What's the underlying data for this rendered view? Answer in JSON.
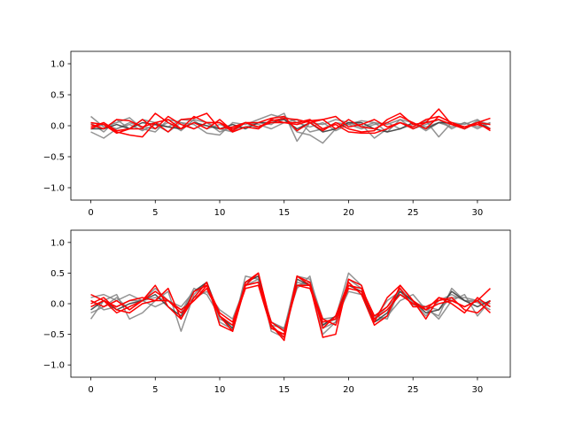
{
  "colors": {
    "gray": "#808080",
    "dark": "#3d3d3d",
    "red": "#ff0000"
  },
  "chart_data": [
    {
      "type": "line",
      "xlim": [
        -1.55,
        32.55
      ],
      "ylim": [
        -1.2,
        1.2
      ],
      "xticks": [
        0,
        5,
        10,
        15,
        20,
        25,
        30
      ],
      "yticks": [
        -1.0,
        -0.5,
        0.0,
        0.5,
        1.0
      ],
      "xtick_labels": [
        "0",
        "5",
        "10",
        "15",
        "20",
        "25",
        "30"
      ],
      "ytick_labels": [
        "−1.0",
        "−0.5",
        "0.0",
        "0.5",
        "1.0"
      ],
      "grid": false,
      "x": [
        0,
        1,
        2,
        3,
        4,
        5,
        6,
        7,
        8,
        9,
        10,
        11,
        12,
        13,
        14,
        15,
        16,
        17,
        18,
        19,
        20,
        21,
        22,
        23,
        24,
        25,
        26,
        27,
        28,
        29,
        30,
        31
      ],
      "series": [
        {
          "color": "gray",
          "values": [
            0.15,
            -0.02,
            0.05,
            0.13,
            -0.05,
            -0.1,
            0.1,
            0.05,
            0.02,
            -0.12,
            -0.15,
            0.05,
            0.02,
            0.1,
            0.18,
            0.12,
            -0.1,
            -0.15,
            -0.28,
            -0.05,
            0.05,
            0.02,
            -0.2,
            -0.05,
            0.05,
            -0.02,
            0.08,
            -0.18,
            0.05,
            0.02,
            0.1,
            -0.05
          ]
        },
        {
          "color": "gray",
          "values": [
            -0.1,
            -0.2,
            -0.05,
            0.05,
            -0.02,
            -0.05,
            0.05,
            -0.08,
            0.1,
            0.05,
            -0.05,
            -0.1,
            0.05,
            -0.05,
            0.1,
            0.2,
            -0.25,
            0.05,
            0.02,
            0.1,
            0.05,
            -0.02,
            0.05,
            -0.1,
            0.1,
            0.05,
            -0.08,
            0.05,
            -0.02,
            0.05,
            -0.02,
            0.05
          ]
        },
        {
          "color": "gray",
          "values": [
            0.05,
            -0.1,
            0.1,
            -0.05,
            0.1,
            0.05,
            -0.02,
            0.1,
            0.08,
            -0.05,
            0.02,
            -0.05,
            -0.02,
            0.05,
            0.02,
            0.15,
            0.05,
            -0.02,
            0.05,
            -0.08,
            0.02,
            0.08,
            0.05,
            0.02,
            0.1,
            -0.05,
            0.02,
            0.1,
            -0.05,
            0.05,
            -0.05,
            0.05
          ]
        },
        {
          "color": "gray",
          "values": [
            -0.05,
            0.02,
            -0.05,
            0.02,
            -0.08,
            0.02,
            -0.1,
            0.05,
            -0.05,
            0.05,
            -0.1,
            -0.02,
            0.05,
            0.02,
            -0.05,
            0.05,
            0.1,
            -0.1,
            -0.05,
            0.05,
            0.02,
            -0.05,
            0.02,
            0.05,
            -0.05,
            0.02,
            -0.02,
            0.05,
            0.02,
            -0.05,
            0.08,
            0.02
          ]
        },
        {
          "color": "dark",
          "values": [
            -0.05,
            -0.05,
            0.02,
            -0.05,
            0.05,
            0.02,
            -0.02,
            -0.05,
            0.05,
            0.0,
            -0.05,
            0.02,
            -0.05,
            0.05,
            0.05,
            0.1,
            -0.05,
            0.05,
            -0.1,
            -0.05,
            0.05,
            0.05,
            -0.05,
            -0.1,
            -0.05,
            0.05,
            -0.05,
            0.05,
            0.05,
            -0.05,
            0.05,
            -0.05
          ]
        },
        {
          "color": "red",
          "values": [
            -0.02,
            0.05,
            -0.08,
            -0.05,
            0.1,
            -0.05,
            0.15,
            0.02,
            -0.05,
            0.05,
            0.05,
            -0.1,
            -0.02,
            -0.05,
            0.1,
            0.05,
            0.02,
            0.08,
            0.1,
            -0.05,
            0.1,
            -0.02,
            -0.05,
            0.05,
            0.15,
            0.05,
            -0.05,
            0.15,
            0.05,
            -0.02,
            0.05,
            0.12
          ]
        },
        {
          "color": "red",
          "values": [
            0.02,
            -0.05,
            0.1,
            0.08,
            -0.02,
            0.05,
            -0.1,
            0.1,
            0.12,
            0.2,
            -0.05,
            -0.02,
            0.05,
            -0.02,
            0.08,
            0.12,
            0.1,
            0.05,
            -0.08,
            0.05,
            -0.05,
            -0.1,
            -0.08,
            0.1,
            0.2,
            0.02,
            0.05,
            0.27,
            0.02,
            -0.05,
            0.05,
            -0.08
          ]
        },
        {
          "color": "red",
          "values": [
            0.05,
            0.02,
            -0.12,
            -0.05,
            -0.05,
            0.2,
            0.05,
            -0.05,
            0.15,
            0.05,
            0.05,
            -0.05,
            0.05,
            -0.02,
            0.05,
            0.05,
            0.05,
            0.1,
            -0.05,
            0.02,
            -0.1,
            -0.12,
            -0.12,
            -0.05,
            0.05,
            -0.02,
            0.1,
            0.15,
            0.05,
            -0.02,
            0.05,
            0.02
          ]
        },
        {
          "color": "red",
          "values": [
            -0.05,
            0.05,
            -0.1,
            -0.15,
            -0.18,
            0.05,
            0.1,
            -0.05,
            0.05,
            -0.05,
            0.1,
            -0.08,
            0.05,
            0.05,
            0.12,
            0.15,
            -0.08,
            0.05,
            0.1,
            0.15,
            -0.02,
            0.02,
            0.1,
            -0.02,
            0.05,
            -0.05,
            0.05,
            0.1,
            0.02,
            -0.02,
            0.02,
            -0.05
          ]
        }
      ]
    },
    {
      "type": "line",
      "xlim": [
        -1.55,
        32.55
      ],
      "ylim": [
        -1.2,
        1.2
      ],
      "xticks": [
        0,
        5,
        10,
        15,
        20,
        25,
        30
      ],
      "yticks": [
        -1.0,
        -0.5,
        0.0,
        0.5,
        1.0
      ],
      "xtick_labels": [
        "0",
        "5",
        "10",
        "15",
        "20",
        "25",
        "30"
      ],
      "ytick_labels": [
        "−1.0",
        "−0.5",
        "0.0",
        "0.5",
        "1.0"
      ],
      "grid": false,
      "x": [
        0,
        1,
        2,
        3,
        4,
        5,
        6,
        7,
        8,
        9,
        10,
        11,
        12,
        13,
        14,
        15,
        16,
        17,
        18,
        19,
        20,
        21,
        22,
        23,
        24,
        25,
        26,
        27,
        28,
        29,
        30,
        31
      ],
      "series": [
        {
          "color": "gray",
          "values": [
            -0.25,
            0.05,
            0.15,
            -0.25,
            -0.15,
            0.05,
            0.2,
            -0.45,
            0.15,
            0.35,
            -0.3,
            -0.42,
            0.45,
            0.4,
            -0.3,
            -0.42,
            0.45,
            0.4,
            -0.25,
            -0.22,
            0.5,
            0.3,
            -0.3,
            -0.2,
            0.05,
            0.15,
            -0.1,
            -0.2,
            0.25,
            0.05,
            0.02,
            -0.1
          ]
        },
        {
          "color": "gray",
          "values": [
            0.1,
            0.15,
            0.05,
            0.15,
            0.05,
            0.1,
            0.05,
            -0.05,
            0.2,
            0.3,
            -0.25,
            -0.35,
            0.35,
            0.45,
            -0.45,
            -0.55,
            0.35,
            0.3,
            -0.5,
            -0.3,
            0.4,
            0.25,
            -0.2,
            -0.25,
            0.25,
            0.02,
            -0.05,
            -0.25,
            0.05,
            0.15,
            -0.2,
            0.05
          ]
        },
        {
          "color": "gray",
          "values": [
            -0.15,
            -0.05,
            0.1,
            -0.1,
            0.05,
            0.25,
            0.05,
            -0.15,
            0.25,
            0.15,
            -0.2,
            -0.45,
            0.3,
            0.4,
            -0.35,
            -0.4,
            0.25,
            0.45,
            -0.4,
            -0.3,
            0.3,
            0.2,
            -0.25,
            -0.05,
            0.15,
            0.05,
            -0.2,
            0.05,
            0.15,
            0.05,
            0.05,
            -0.05
          ]
        },
        {
          "color": "gray",
          "values": [
            0.05,
            -0.1,
            -0.05,
            0.05,
            0.05,
            -0.05,
            0.05,
            -0.1,
            0.1,
            0.2,
            -0.1,
            -0.25,
            0.3,
            0.35,
            -0.3,
            -0.4,
            0.3,
            0.35,
            -0.35,
            -0.25,
            0.2,
            0.15,
            -0.25,
            0.05,
            0.2,
            -0.02,
            -0.05,
            -0.1,
            0.1,
            0.1,
            0.05,
            0.0
          ]
        },
        {
          "color": "dark",
          "values": [
            -0.1,
            0.05,
            -0.1,
            0.0,
            0.05,
            0.15,
            -0.05,
            -0.2,
            0.2,
            0.35,
            -0.2,
            -0.4,
            0.35,
            0.45,
            -0.4,
            -0.5,
            0.4,
            0.3,
            -0.35,
            -0.2,
            0.3,
            0.2,
            -0.3,
            -0.15,
            0.2,
            0.05,
            -0.15,
            -0.1,
            0.2,
            0.05,
            -0.05,
            0.05
          ]
        },
        {
          "color": "red",
          "values": [
            0.15,
            0.05,
            -0.15,
            -0.05,
            0.05,
            0.3,
            -0.05,
            -0.25,
            0.2,
            0.3,
            -0.2,
            -0.45,
            0.3,
            0.5,
            -0.35,
            -0.6,
            0.45,
            0.3,
            -0.55,
            -0.5,
            0.4,
            0.3,
            -0.3,
            0.1,
            0.3,
            0.05,
            -0.25,
            0.1,
            0.05,
            -0.05,
            0.05,
            0.25
          ]
        },
        {
          "color": "red",
          "values": [
            0.0,
            0.1,
            -0.1,
            -0.15,
            0.0,
            0.05,
            0.25,
            -0.25,
            0.1,
            0.35,
            -0.35,
            -0.45,
            0.35,
            0.5,
            -0.35,
            -0.55,
            0.45,
            0.35,
            -0.4,
            -0.2,
            0.35,
            0.15,
            -0.35,
            -0.2,
            0.3,
            0.05,
            -0.1,
            0.1,
            0.0,
            -0.15,
            0.1,
            -0.05
          ]
        },
        {
          "color": "red",
          "values": [
            0.05,
            -0.05,
            0.05,
            -0.1,
            0.05,
            0.2,
            0.05,
            -0.15,
            0.05,
            0.3,
            -0.15,
            -0.3,
            0.3,
            0.35,
            -0.3,
            -0.45,
            0.3,
            0.3,
            -0.25,
            -0.35,
            0.3,
            0.25,
            -0.2,
            -0.05,
            0.25,
            -0.05,
            -0.05,
            0.05,
            0.1,
            -0.1,
            -0.15,
            0.05
          ]
        },
        {
          "color": "red",
          "values": [
            -0.05,
            0.05,
            -0.05,
            0.05,
            0.1,
            0.05,
            0.05,
            -0.1,
            0.05,
            0.25,
            -0.2,
            -0.35,
            0.25,
            0.3,
            -0.4,
            -0.5,
            0.3,
            0.25,
            -0.3,
            -0.25,
            0.25,
            0.2,
            -0.25,
            -0.1,
            0.15,
            0.0,
            -0.1,
            0.0,
            0.05,
            -0.05,
            0.05,
            -0.15
          ]
        }
      ]
    }
  ]
}
